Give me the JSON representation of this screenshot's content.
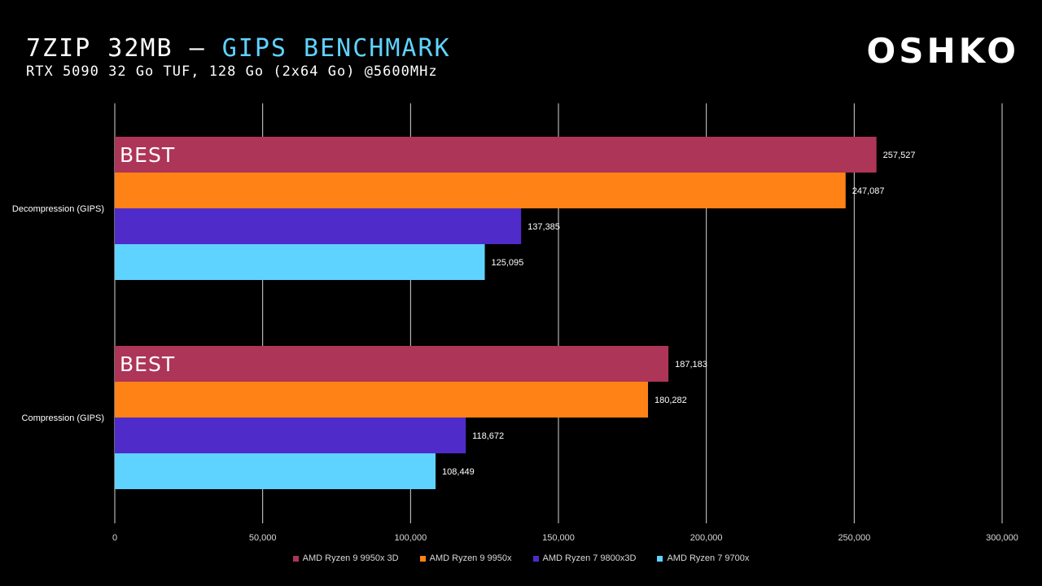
{
  "header": {
    "title_main": "7ZIP 32MB – ",
    "title_accent": "GIPS BENCHMARK",
    "subtitle": "RTX 5090 32 Go TUF, 128 Go (2x64 Go) @5600MHz",
    "logo": "OSHKO"
  },
  "chart_data": {
    "type": "bar",
    "orientation": "horizontal",
    "categories": [
      "Decompression (GIPS)",
      "Compression (GIPS)"
    ],
    "series": [
      {
        "name": "AMD Ryzen 9 9950x 3D",
        "color": "#ad3557",
        "values": [
          257527,
          187183
        ],
        "labels": [
          "257,527",
          "187,183"
        ]
      },
      {
        "name": "AMD Ryzen 9 9950x",
        "color": "#ff8216",
        "values": [
          247087,
          180282
        ],
        "labels": [
          "247,087",
          "180,282"
        ]
      },
      {
        "name": "AMD Ryzen 7 9800x3D",
        "color": "#4f2bc9",
        "values": [
          137385,
          118672
        ],
        "labels": [
          "137,385",
          "118,672"
        ]
      },
      {
        "name": "AMD Ryzen 7 9700x",
        "color": "#5fd3ff",
        "values": [
          125095,
          108449
        ],
        "labels": [
          "125,095",
          "108,449"
        ]
      }
    ],
    "xlim": [
      0,
      300000
    ],
    "xticks": [
      0,
      50000,
      100000,
      150000,
      200000,
      250000,
      300000
    ],
    "xtick_labels": [
      "0",
      "50,000",
      "100,000",
      "150,000",
      "200,000",
      "250,000",
      "300,000"
    ],
    "annotations": [
      "BEST",
      "BEST"
    ],
    "grid": true,
    "legend_position": "bottom"
  }
}
